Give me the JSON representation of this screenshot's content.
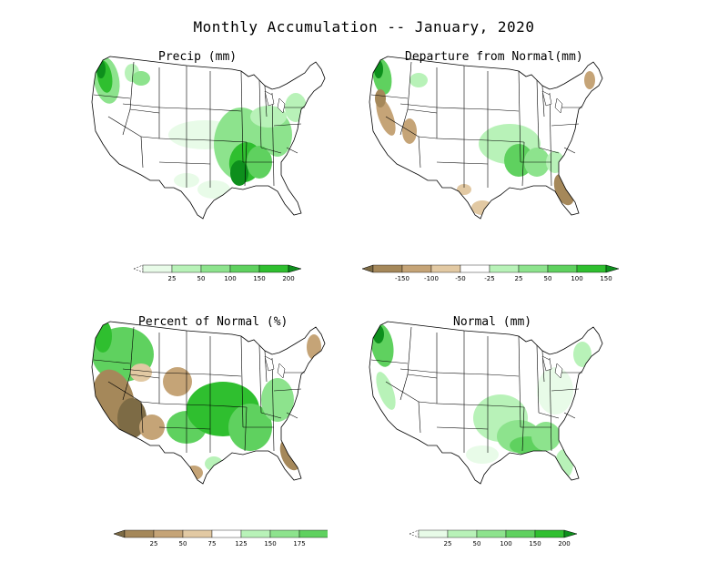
{
  "title": "Monthly Accumulation -- January, 2020",
  "colors": {
    "green_1": "#e8fbe8",
    "green_2": "#b8f2b8",
    "green_3": "#8de38d",
    "green_4": "#5fd15f",
    "green_5": "#2fbf2f",
    "green_6": "#0d8f1c",
    "brown_1": "#e2c9a3",
    "brown_2": "#c5a477",
    "brown_3": "#a5885a",
    "brown_4": "#7d6b45",
    "outline": "#000000"
  },
  "panels": [
    {
      "title": "Precip (mm)",
      "legend": {
        "type": "sequential",
        "ticks": [
          "25",
          "50",
          "100",
          "150",
          "200"
        ]
      }
    },
    {
      "title": "Departure from Normal(mm)",
      "legend": {
        "type": "diverging",
        "ticks": [
          "-150",
          "-100",
          "-50",
          "-25",
          "25",
          "50",
          "100",
          "150"
        ]
      }
    },
    {
      "title": "Percent of Normal (%)",
      "legend": {
        "type": "diverging",
        "ticks": [
          "25",
          "50",
          "75",
          "125",
          "150",
          "175"
        ]
      }
    },
    {
      "title": "Normal (mm)",
      "legend": {
        "type": "sequential",
        "ticks": [
          "25",
          "50",
          "100",
          "150",
          "200"
        ]
      }
    }
  ]
}
